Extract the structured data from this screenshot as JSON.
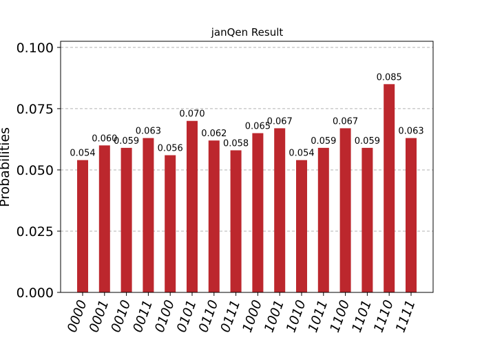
{
  "chart_data": {
    "type": "bar",
    "title": "janQen Result",
    "xlabel": "",
    "ylabel": "Probabilities",
    "ylim": [
      0,
      0.1025
    ],
    "yticks": [
      "0.000",
      "0.025",
      "0.050",
      "0.075",
      "0.100"
    ],
    "ytick_values": [
      0,
      0.025,
      0.05,
      0.075,
      0.1
    ],
    "grid": "horizontal dashed",
    "categories": [
      "0000",
      "0001",
      "0010",
      "0011",
      "0100",
      "0101",
      "0110",
      "0111",
      "1000",
      "1001",
      "1010",
      "1011",
      "1100",
      "1101",
      "1110",
      "1111"
    ],
    "values": [
      0.054,
      0.06,
      0.059,
      0.063,
      0.056,
      0.07,
      0.062,
      0.058,
      0.065,
      0.067,
      0.054,
      0.059,
      0.067,
      0.059,
      0.085,
      0.063
    ],
    "value_labels": [
      "0.054",
      "0.060",
      "0.059",
      "0.063",
      "0.056",
      "0.070",
      "0.062",
      "0.058",
      "0.065",
      "0.067",
      "0.054",
      "0.059",
      "0.067",
      "0.059",
      "0.085",
      "0.063"
    ],
    "bar_color": "#bc272d"
  }
}
